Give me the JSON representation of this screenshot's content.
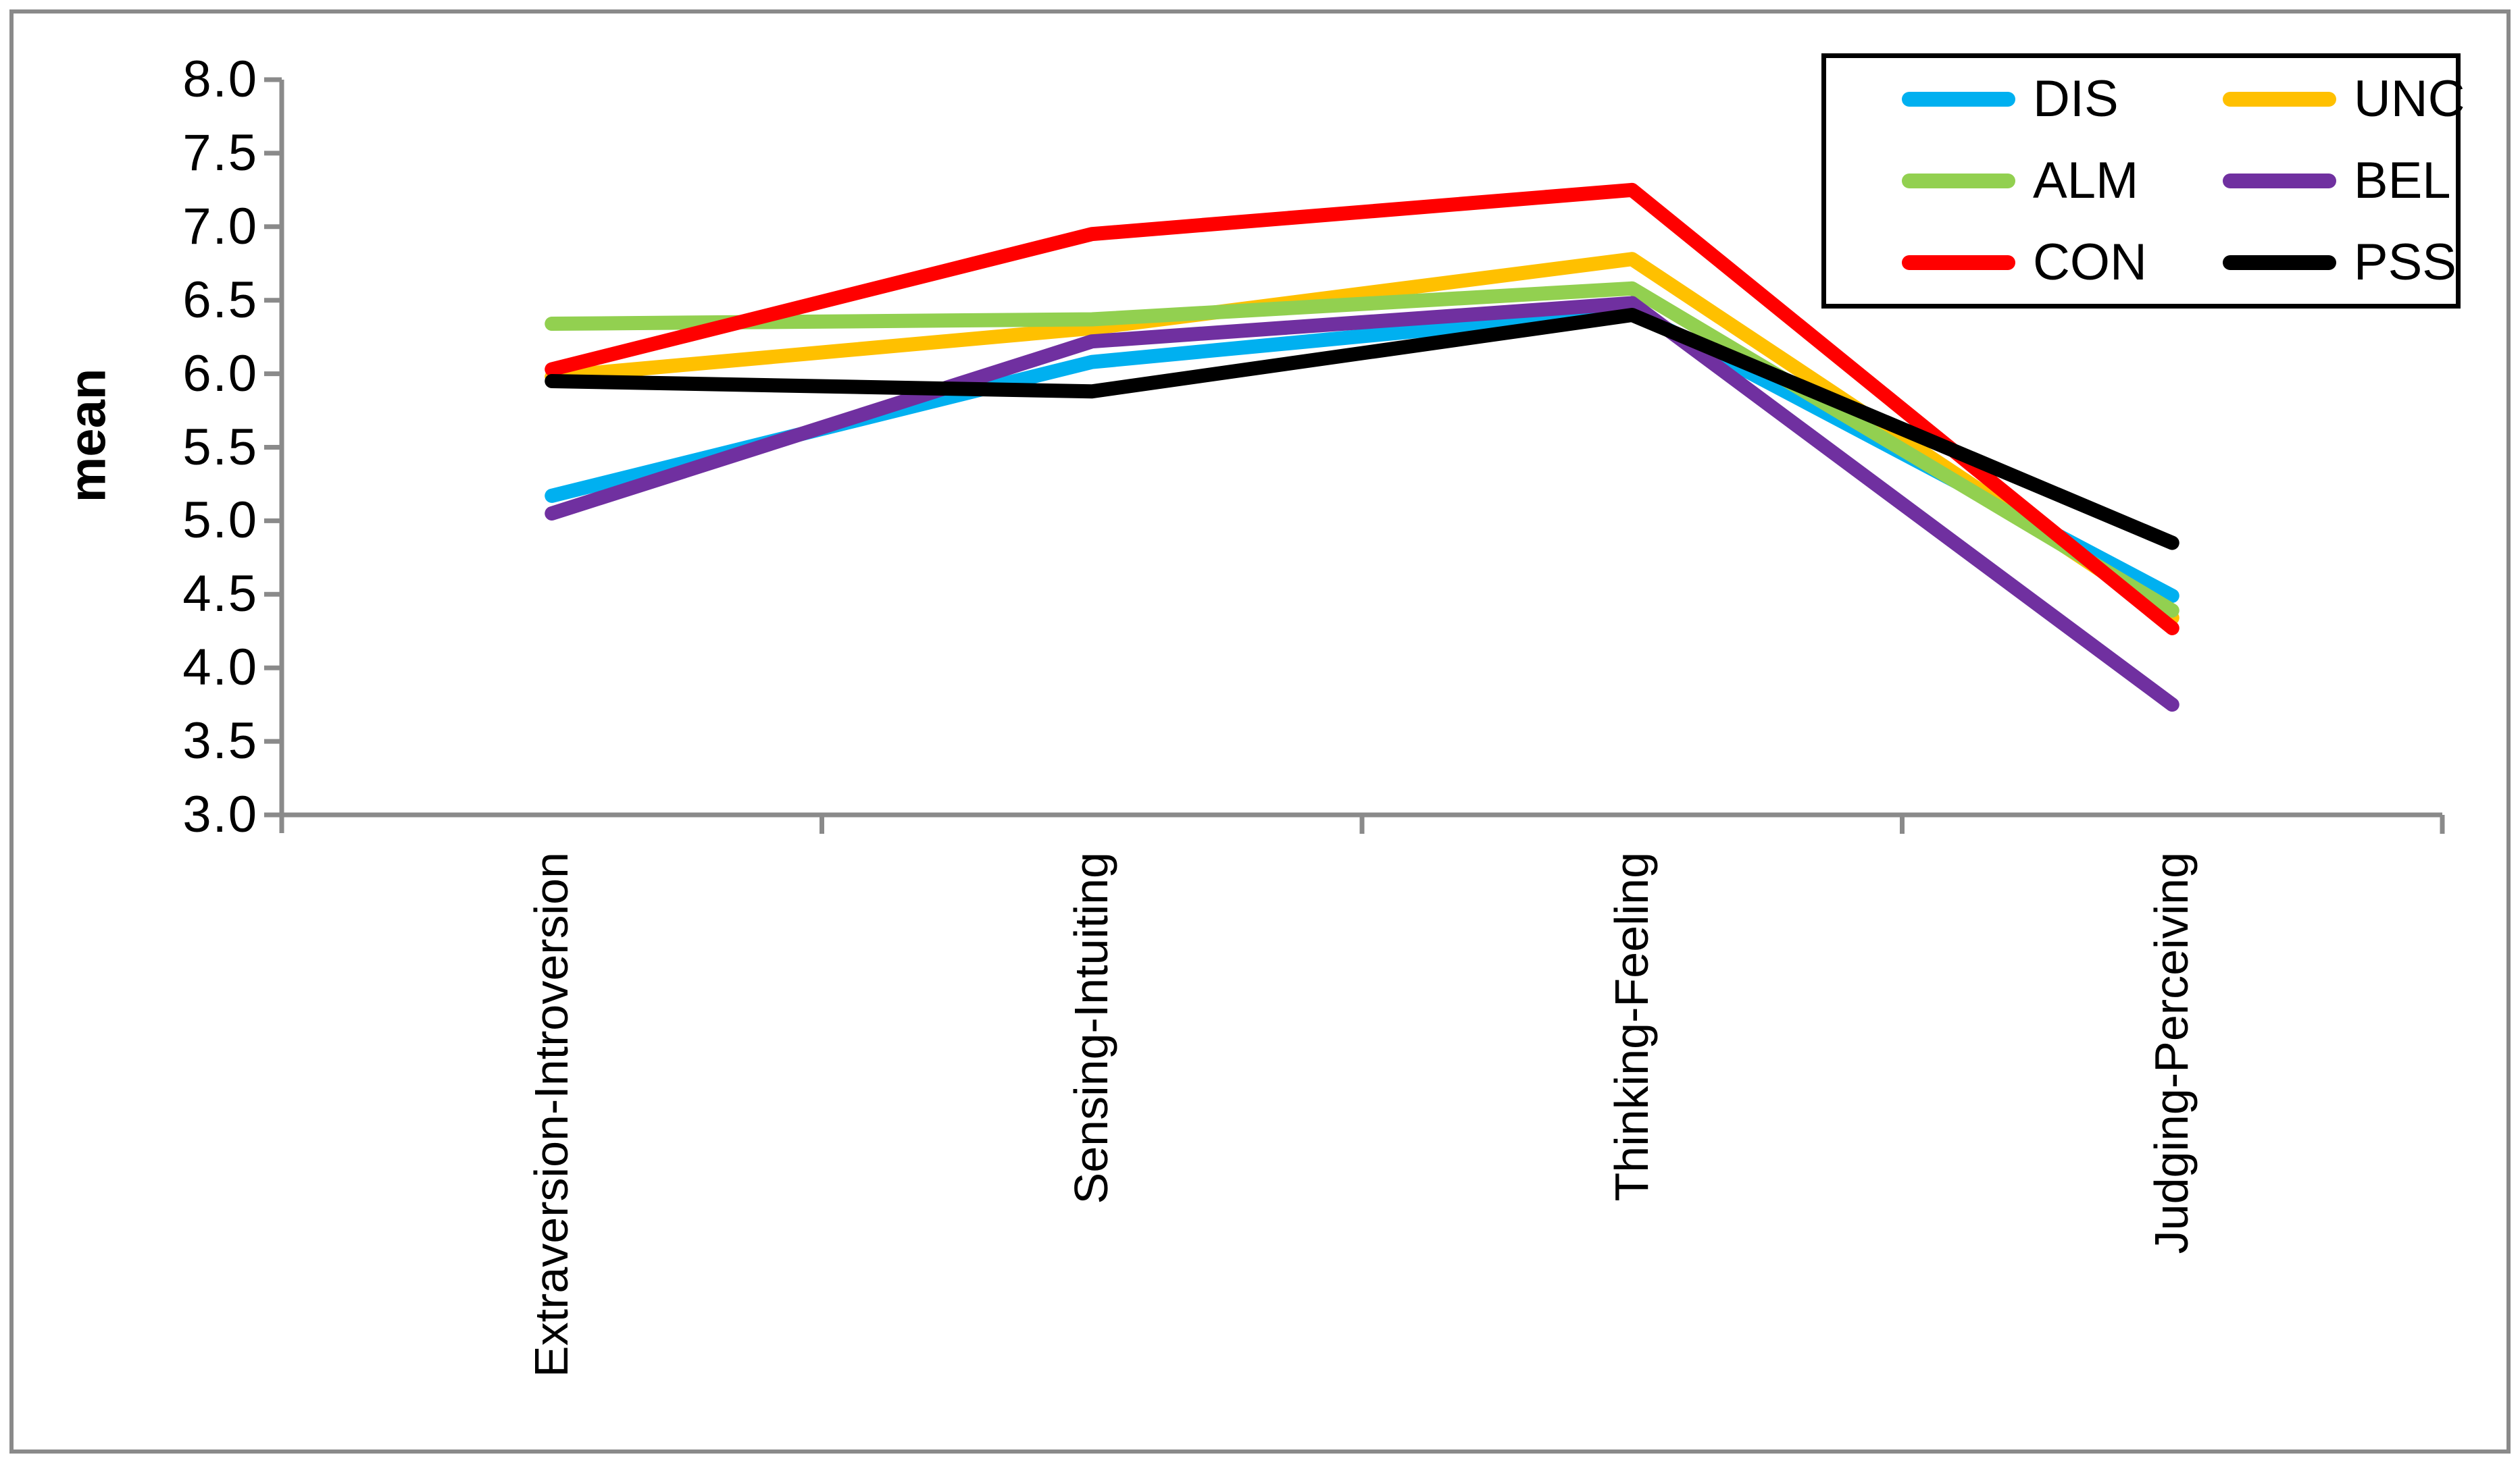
{
  "chart_data": {
    "type": "line",
    "title": "",
    "xlabel": "",
    "ylabel": "mean",
    "ylim": [
      3.0,
      8.0
    ],
    "ytick_step": 0.5,
    "ytick_labels": [
      "8.0",
      "7.5",
      "7.0",
      "6.5",
      "6.0",
      "5.5",
      "5.0",
      "4.5",
      "4.0",
      "3.5",
      "3.0"
    ],
    "grid": false,
    "axis_color": "#8a8a8a",
    "categories": [
      "Extraversion-Introversion",
      "Sensing-Intuiting",
      "Thinking-Feeling",
      "Judging-Perceiving"
    ],
    "series": [
      {
        "name": "DIS",
        "color": "#00B0F0",
        "values": [
          5.17,
          6.08,
          6.43,
          4.49
        ]
      },
      {
        "name": "UNC",
        "color": "#FFC000",
        "values": [
          5.98,
          6.31,
          6.78,
          4.34
        ]
      },
      {
        "name": "ALM",
        "color": "#92D050",
        "values": [
          6.34,
          6.37,
          6.58,
          4.39
        ]
      },
      {
        "name": "BEL",
        "color": "#7030A0",
        "values": [
          5.05,
          6.22,
          6.48,
          3.75
        ]
      },
      {
        "name": "CON",
        "color": "#FF0000",
        "values": [
          6.03,
          6.95,
          7.25,
          4.27
        ]
      },
      {
        "name": "PSS",
        "color": "#000000",
        "values": [
          5.95,
          5.88,
          6.4,
          4.85
        ]
      }
    ],
    "legend": {
      "position": "top-right",
      "columns": 2,
      "order": [
        "DIS",
        "UNC",
        "ALM",
        "BEL",
        "CON",
        "PSS"
      ]
    }
  }
}
